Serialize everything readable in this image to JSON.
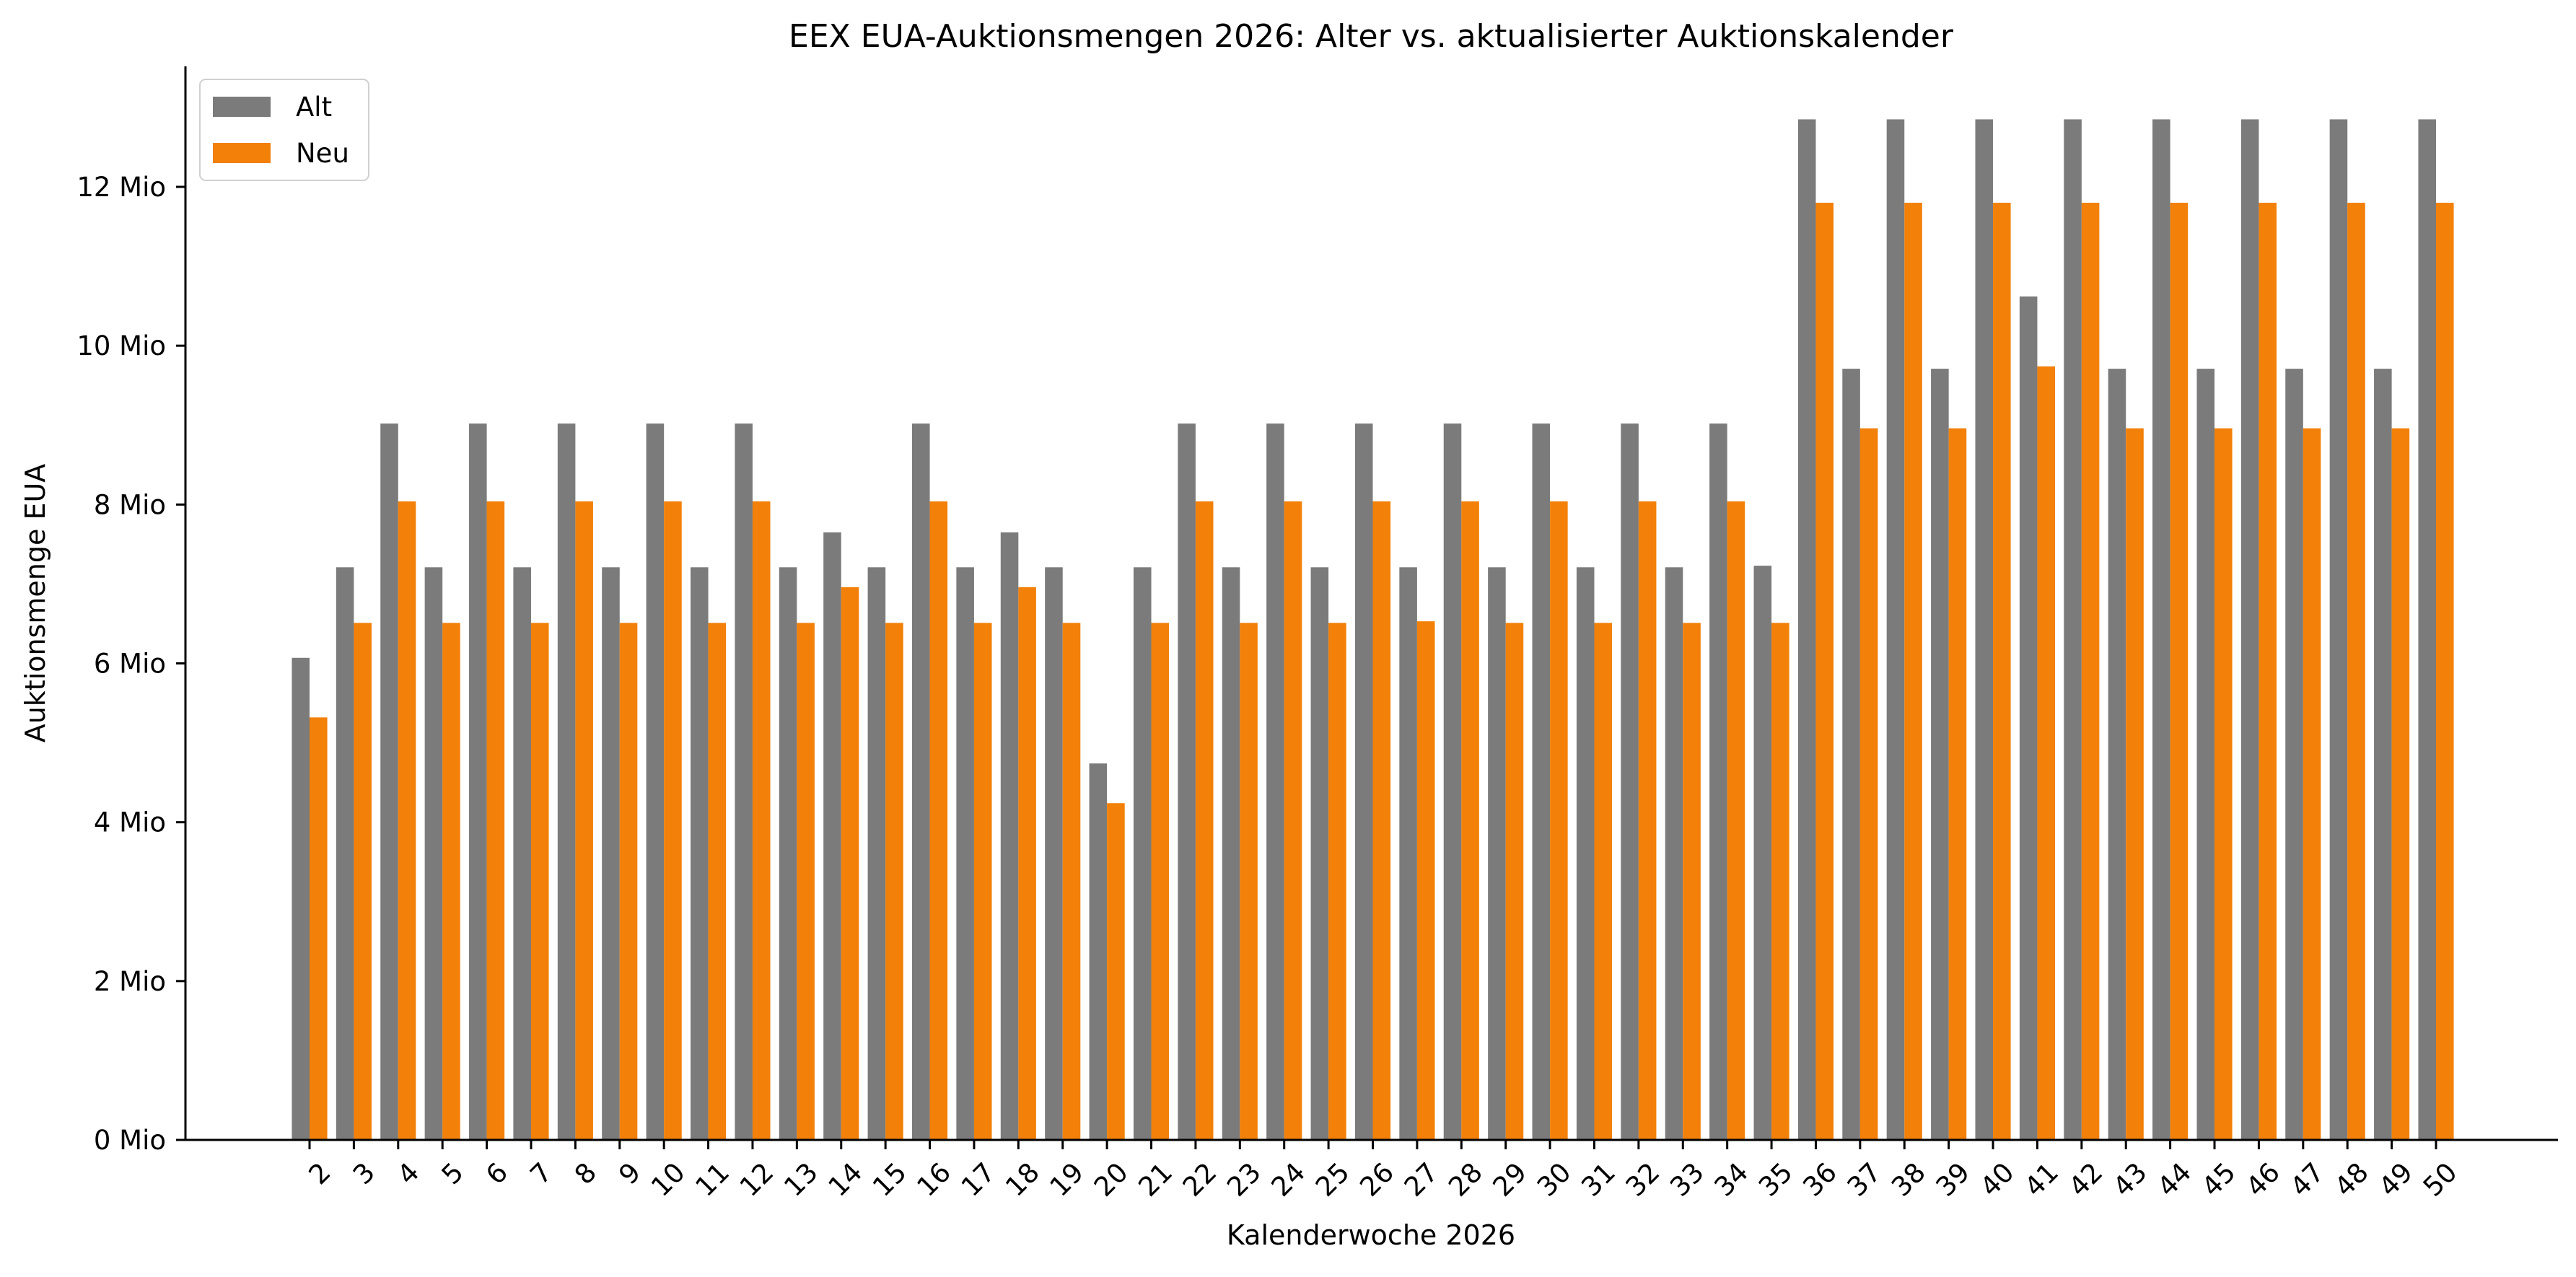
{
  "chart_data": {
    "type": "bar",
    "title": "EEX EUA-Auktionsmengen 2026: Alter vs. aktualisierter Auktionskalender",
    "xlabel": "Kalenderwoche 2026",
    "ylabel": "Auktionsmenge EUA",
    "categories": [
      "2",
      "3",
      "4",
      "5",
      "6",
      "7",
      "8",
      "9",
      "10",
      "11",
      "12",
      "13",
      "14",
      "15",
      "16",
      "17",
      "18",
      "19",
      "20",
      "21",
      "22",
      "23",
      "24",
      "25",
      "26",
      "27",
      "28",
      "29",
      "30",
      "31",
      "32",
      "33",
      "34",
      "35",
      "36",
      "37",
      "38",
      "39",
      "40",
      "41",
      "42",
      "43",
      "44",
      "45",
      "46",
      "47",
      "48",
      "49",
      "50"
    ],
    "series": [
      {
        "name": "Alt",
        "color": "#7b7b7b",
        "values": [
          6070000,
          7210000,
          9020000,
          7210000,
          9020000,
          7210000,
          9020000,
          7210000,
          9020000,
          7210000,
          9020000,
          7210000,
          7650000,
          7210000,
          9020000,
          7210000,
          7650000,
          7210000,
          4740000,
          7210000,
          9020000,
          7210000,
          9020000,
          7210000,
          9020000,
          7210000,
          9020000,
          7210000,
          9020000,
          7210000,
          9020000,
          7210000,
          9020000,
          7230000,
          12850000,
          9710000,
          12850000,
          9710000,
          12850000,
          10620000,
          12850000,
          9710000,
          12850000,
          9710000,
          12850000,
          9710000,
          12850000,
          9710000,
          12850000
        ]
      },
      {
        "name": "Neu",
        "color": "#f28009",
        "values": [
          5320000,
          6510000,
          8040000,
          6510000,
          8040000,
          6510000,
          8040000,
          6510000,
          8040000,
          6510000,
          8040000,
          6510000,
          6960000,
          6510000,
          8040000,
          6510000,
          6960000,
          6510000,
          4240000,
          6510000,
          8040000,
          6510000,
          8040000,
          6510000,
          8040000,
          6530000,
          8040000,
          6510000,
          8040000,
          6510000,
          8040000,
          6510000,
          8040000,
          6510000,
          11800000,
          8960000,
          11800000,
          8960000,
          11800000,
          9740000,
          11800000,
          8960000,
          11800000,
          8960000,
          11800000,
          8960000,
          11800000,
          8960000,
          11800000
        ]
      }
    ],
    "yticks": [
      0,
      2000000,
      4000000,
      6000000,
      8000000,
      10000000,
      12000000
    ],
    "ytick_labels": [
      "0 Mio",
      "2 Mio",
      "4 Mio",
      "6 Mio",
      "8 Mio",
      "10 Mio",
      "12 Mio"
    ],
    "ylim": [
      0,
      13500000
    ],
    "legend": [
      "Alt",
      "Neu"
    ],
    "legend_position": "top-left",
    "grid": false
  }
}
